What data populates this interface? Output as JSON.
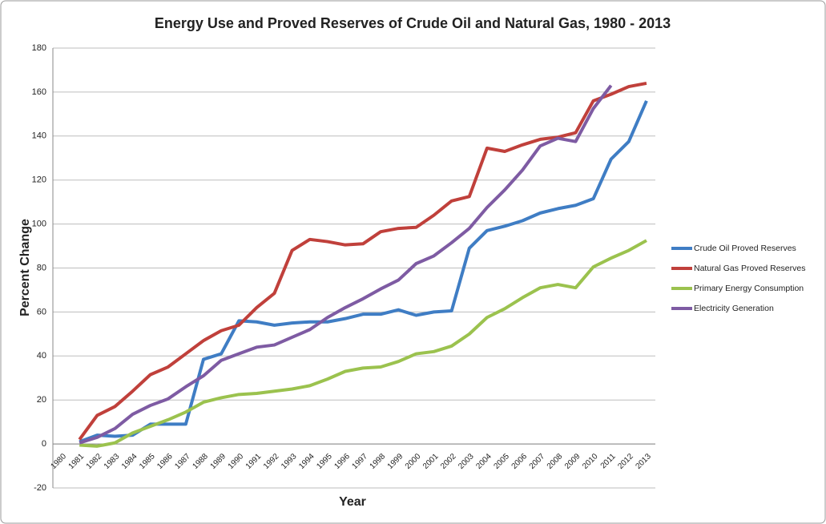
{
  "chart_data": {
    "type": "line",
    "title": "Energy Use and Proved Reserves of Crude Oil and Natural Gas, 1980 - 2013",
    "x_label": "Year",
    "y_label": "Percent Change",
    "categories": [
      "1980",
      "1981",
      "1982",
      "1983",
      "1984",
      "1985",
      "1986",
      "1987",
      "1988",
      "1989",
      "1990",
      "1991",
      "1992",
      "1993",
      "1994",
      "1995",
      "1996",
      "1997",
      "1998",
      "1999",
      "2000",
      "2001",
      "2002",
      "2003",
      "2004",
      "2005",
      "2006",
      "2007",
      "2008",
      "2009",
      "2010",
      "2011",
      "2012",
      "2013"
    ],
    "series": [
      {
        "name": "Crude Oil Proved Reserves",
        "color": "#3f7dc4",
        "values": [
          null,
          1,
          4,
          3.5,
          4,
          9,
          9,
          9,
          38.5,
          41,
          56,
          55.5,
          54,
          55,
          55.5,
          55.5,
          57,
          59,
          59,
          61,
          58.5,
          60,
          60.5,
          89,
          97,
          99,
          101.5,
          105,
          107,
          108.5,
          111.5,
          129.5,
          137.5,
          156
        ]
      },
      {
        "name": "Natural Gas Proved Reserves",
        "color": "#c0403b",
        "values": [
          null,
          2,
          13,
          17,
          24,
          31.5,
          35,
          41,
          47,
          51.5,
          54,
          62,
          68.5,
          88,
          93,
          92,
          90.5,
          91,
          96.5,
          98,
          98.5,
          104,
          110.5,
          112.5,
          134.5,
          133,
          136,
          138.5,
          139.5,
          141.5,
          156,
          159,
          162.5,
          164
        ]
      },
      {
        "name": "Primary Energy Consumption",
        "color": "#9bc24e",
        "values": [
          null,
          -0.5,
          -1,
          0.5,
          5,
          8,
          11,
          14.5,
          19,
          21,
          22.5,
          23,
          24,
          25,
          26.5,
          29.5,
          33,
          34.5,
          35,
          37.5,
          41,
          42,
          44.5,
          50,
          57.5,
          61.5,
          66.5,
          71,
          72.5,
          71,
          80.5,
          84.5,
          88,
          92.5
        ]
      },
      {
        "name": "Electricity Generation",
        "color": "#7e5ba3",
        "values": [
          null,
          0.5,
          3,
          7,
          13.5,
          17.5,
          20.5,
          26,
          31,
          38,
          41,
          44,
          45,
          48.5,
          52,
          57.5,
          62,
          66,
          70.5,
          74.5,
          82,
          85.5,
          91.5,
          98,
          107.5,
          115.5,
          124.5,
          135.5,
          139,
          137.5,
          152.5,
          163,
          null,
          null
        ]
      }
    ],
    "ylim": [
      -20,
      180
    ],
    "yticks": [
      -20,
      0,
      20,
      40,
      60,
      80,
      100,
      120,
      140,
      160,
      180
    ],
    "grid": true,
    "legend": "right"
  }
}
